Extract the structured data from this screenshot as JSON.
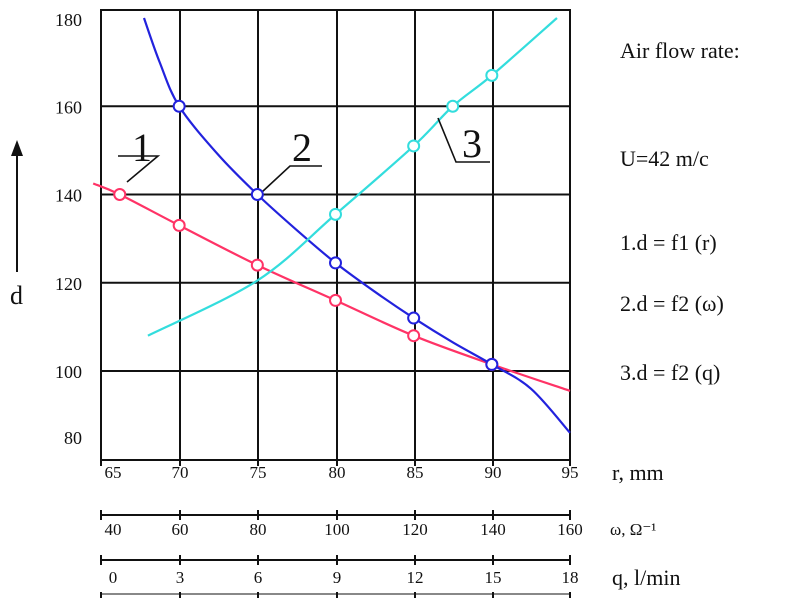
{
  "chart_data": {
    "type": "line",
    "title": "",
    "ylabel": "d",
    "ylim": [
      80,
      180
    ],
    "yticks": [
      80,
      100,
      120,
      140,
      160,
      180
    ],
    "grid": true,
    "x_axes": [
      {
        "key": "r",
        "label": "r, mm",
        "ticks": [
          65,
          70,
          75,
          80,
          85,
          90,
          95
        ],
        "range": [
          65,
          95
        ]
      },
      {
        "key": "omega",
        "label": "ω,  Ω⁻¹",
        "ticks": [
          40,
          60,
          80,
          100,
          120,
          140,
          160
        ],
        "range": [
          40,
          160
        ]
      },
      {
        "key": "q",
        "label": "q, l/min",
        "ticks": [
          0,
          3,
          6,
          9,
          12,
          15,
          18
        ],
        "range": [
          0,
          18
        ]
      }
    ],
    "series": [
      {
        "id": "1",
        "axis": "r",
        "color": "#ff3366",
        "points": [
          [
            66.2,
            140
          ],
          [
            70,
            133
          ],
          [
            75,
            124
          ],
          [
            80,
            116
          ],
          [
            85,
            108
          ],
          [
            90,
            101.5
          ]
        ],
        "curve": [
          [
            64.5,
            142.5
          ],
          [
            66.2,
            140
          ],
          [
            70,
            133
          ],
          [
            75,
            124
          ],
          [
            80,
            116
          ],
          [
            85,
            108
          ],
          [
            90,
            101.5
          ],
          [
            95,
            95.5
          ]
        ]
      },
      {
        "id": "2",
        "axis": "omega",
        "color": "#2222dd",
        "points": [
          [
            60,
            160
          ],
          [
            80,
            140
          ],
          [
            100,
            124.5
          ],
          [
            120,
            112
          ],
          [
            140,
            101.5
          ]
        ],
        "curve": [
          [
            51,
            180
          ],
          [
            55,
            170
          ],
          [
            60,
            160
          ],
          [
            70,
            149
          ],
          [
            80,
            140
          ],
          [
            90,
            132
          ],
          [
            100,
            124.5
          ],
          [
            110,
            118
          ],
          [
            120,
            112
          ],
          [
            130,
            106.5
          ],
          [
            140,
            101.5
          ],
          [
            150,
            96
          ],
          [
            160,
            86
          ]
        ]
      },
      {
        "id": "3",
        "axis": "q",
        "color": "#33dddd",
        "points": [
          [
            9,
            135.5
          ],
          [
            12,
            151
          ],
          [
            13.5,
            160
          ],
          [
            15,
            167
          ]
        ],
        "curve": [
          [
            1.8,
            108
          ],
          [
            6,
            120.5
          ],
          [
            9,
            135.5
          ],
          [
            12,
            151
          ],
          [
            13.5,
            160
          ],
          [
            15,
            167
          ],
          [
            17.5,
            180
          ]
        ]
      }
    ],
    "legend": {
      "title": "Air flow rate:",
      "velocity": "U=42 m/c",
      "entries": [
        "1.d = f1 (r)",
        "2.d = f2 (ω)",
        "3.d = f2 (q)"
      ]
    },
    "curve_labels": [
      "1",
      "2",
      "3"
    ]
  }
}
